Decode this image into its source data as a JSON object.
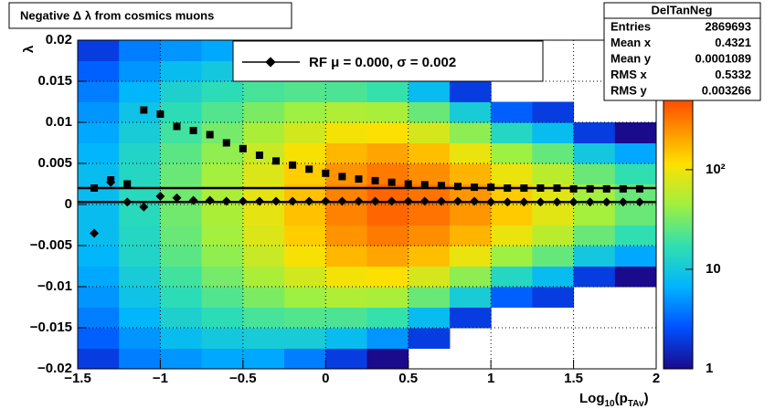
{
  "chart_data": {
    "type": "heatmap",
    "title": "Negative Δ λ from cosmics muons",
    "y_label": "λ",
    "x_label": {
      "base": "Log",
      "sub1": "10",
      "mid": "(p",
      "sub2": "TAv",
      "end": ")"
    },
    "xlim": [
      -1.5,
      2
    ],
    "ylim": [
      -0.02,
      0.02
    ],
    "xticks": [
      {
        "value": -1.5,
        "label": "−1.5"
      },
      {
        "value": -1,
        "label": "−1"
      },
      {
        "value": -0.5,
        "label": "−0.5"
      },
      0,
      0.5,
      1,
      1.5,
      2
    ],
    "yticks": [
      {
        "value": -0.02,
        "label": "−0.02"
      },
      {
        "value": -0.015,
        "label": "−0.015"
      },
      {
        "value": -0.01,
        "label": "−0.01"
      },
      {
        "value": -0.005,
        "label": "−0.005"
      },
      0,
      0.005,
      0.01,
      0.015,
      0.02
    ],
    "grid": true,
    "zlim": [
      1,
      2000
    ],
    "zlog": true,
    "zticks": [
      1,
      10,
      {
        "value": 100,
        "label": "10²"
      }
    ],
    "palette": [
      "#1a0a8c",
      "#0050ff",
      "#00b4ff",
      "#30e0b0",
      "#a0f040",
      "#ffe000",
      "#ff8000",
      "#ff2000",
      "#a00000"
    ],
    "xbins": [
      -1.5,
      -1.25,
      -1,
      -0.75,
      -0.5,
      -0.25,
      0,
      0.25,
      0.5,
      0.75,
      1,
      1.25,
      1.5,
      1.75,
      2
    ],
    "ybins": [
      -0.02,
      -0.0175,
      -0.015,
      -0.0125,
      -0.01,
      -0.0075,
      -0.005,
      -0.0025,
      0,
      0.0025,
      0.005,
      0.0075,
      0.01,
      0.0125,
      0.015,
      0.0175,
      0.02
    ],
    "z": [
      [
        2,
        4,
        5,
        6,
        6,
        4,
        2,
        1,
        0,
        0,
        0,
        0,
        0,
        0
      ],
      [
        3,
        5,
        8,
        10,
        11,
        11,
        8,
        5,
        2,
        0,
        0,
        0,
        0,
        0
      ],
      [
        4,
        7,
        12,
        16,
        21,
        23,
        22,
        18,
        8,
        2,
        0,
        0,
        0,
        0
      ],
      [
        5,
        9,
        16,
        23,
        33,
        44,
        52,
        49,
        28,
        11,
        3,
        2,
        0,
        0
      ],
      [
        6,
        11,
        20,
        31,
        50,
        73,
        104,
        113,
        76,
        38,
        14,
        8,
        2,
        1
      ],
      [
        7,
        13,
        25,
        39,
        66,
        107,
        174,
        210,
        160,
        95,
        44,
        27,
        10,
        6
      ],
      [
        8,
        14,
        28,
        46,
        81,
        139,
        247,
        317,
        264,
        177,
        97,
        58,
        28,
        17
      ],
      [
        8,
        15,
        30,
        50,
        89,
        157,
        294,
        390,
        339,
        241,
        143,
        86,
        47,
        28
      ],
      [
        8,
        15,
        30,
        50,
        89,
        157,
        294,
        390,
        339,
        241,
        143,
        86,
        47,
        28
      ],
      [
        8,
        14,
        28,
        46,
        81,
        139,
        247,
        317,
        264,
        177,
        97,
        58,
        28,
        17
      ],
      [
        7,
        13,
        25,
        39,
        66,
        107,
        174,
        210,
        160,
        95,
        44,
        27,
        10,
        6
      ],
      [
        6,
        11,
        20,
        31,
        50,
        73,
        104,
        113,
        76,
        38,
        14,
        8,
        2,
        1
      ],
      [
        5,
        9,
        16,
        23,
        33,
        44,
        52,
        49,
        28,
        11,
        3,
        2,
        0,
        0
      ],
      [
        4,
        7,
        12,
        16,
        21,
        23,
        22,
        18,
        8,
        2,
        0,
        0,
        0,
        0
      ],
      [
        3,
        5,
        8,
        10,
        11,
        11,
        8,
        5,
        2,
        0,
        0,
        0,
        0,
        0
      ],
      [
        2,
        4,
        5,
        6,
        6,
        4,
        2,
        1,
        0,
        0,
        0,
        0,
        0,
        0
      ]
    ],
    "x": [
      -1.4,
      -1.3,
      -1.2,
      -1.1,
      -1.0,
      -0.9,
      -0.8,
      -0.7,
      -0.6,
      -0.5,
      -0.4,
      -0.3,
      -0.2,
      -0.1,
      0,
      0.1,
      0.2,
      0.3,
      0.4,
      0.5,
      0.6,
      0.7,
      0.8,
      0.9,
      1.0,
      1.1,
      1.2,
      1.3,
      1.4,
      1.5,
      1.6,
      1.7,
      1.8,
      1.9
    ],
    "series": [
      {
        "name": "RF μ = 0.000, σ = 0.002",
        "marker": "diamond",
        "color": "#000000",
        "values": [
          -0.0035,
          0.0027,
          0.0003,
          -0.0003,
          0.001,
          0.0008,
          0.0005,
          0.0005,
          0.0004,
          0.0004,
          0.0004,
          0.0004,
          0.0004,
          0.0004,
          0.0004,
          0.0004,
          0.0004,
          0.0004,
          0.0004,
          0.0004,
          0.0004,
          0.0004,
          0.0004,
          0.0004,
          0.0003,
          0.0003,
          0.0003,
          0.0003,
          0.0003,
          0.0003,
          0.0003,
          0.0003,
          0.0003,
          0.0003
        ]
      },
      {
        "marker": "square",
        "color": "#000000",
        "values": [
          0.002,
          0.003,
          0.0025,
          0.0115,
          0.011,
          0.0095,
          0.009,
          0.0085,
          0.0075,
          0.0068,
          0.006,
          0.0053,
          0.0048,
          0.0043,
          0.0038,
          0.0034,
          0.0031,
          0.0029,
          0.0027,
          0.0025,
          0.0024,
          0.0023,
          0.0022,
          0.0021,
          0.0021,
          0.002,
          0.002,
          0.002,
          0.002,
          0.0019,
          0.0019,
          0.0019,
          0.0019,
          0.0019
        ]
      }
    ],
    "fit_lines": [
      0.002,
      0.0003
    ],
    "stats": {
      "title": "DelTanNeg",
      "rows": [
        [
          "Entries",
          "2869693"
        ],
        [
          "Mean x",
          "0.4321"
        ],
        [
          "Mean y",
          "0.0001089"
        ],
        [
          "RMS x",
          "0.5332"
        ],
        [
          "RMS y",
          "0.003266"
        ]
      ]
    }
  }
}
